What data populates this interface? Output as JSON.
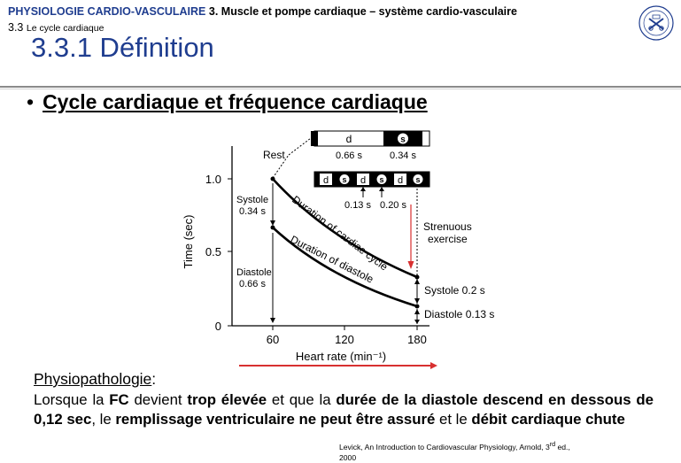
{
  "header": {
    "course": "PHYSIOLOGIE CARDIO-VASCULAIRE",
    "chapter": "3. Muscle et pompe cardiaque – système cardio-vasculaire",
    "section_number": "3.3",
    "section_name": "Le cycle cardiaque",
    "title": "3.3.1 Définition"
  },
  "bullet": {
    "symbol": "•",
    "text": "Cycle cardiaque et fréquence cardiaque"
  },
  "chart_data": {
    "type": "line",
    "xlabel": "Heart rate (min⁻¹)",
    "ylabel": "Time (sec)",
    "xlim": [
      60,
      180
    ],
    "ylim": [
      0,
      1.0
    ],
    "x_ticks": [
      "60",
      "120",
      "180"
    ],
    "y_ticks": [
      "0",
      "0.5",
      "1.0"
    ],
    "series": [
      {
        "name": "Duration of cardiac cycle",
        "x": [
          60,
          180
        ],
        "values": [
          1.0,
          0.33
        ]
      },
      {
        "name": "Duration of diastole",
        "x": [
          60,
          180
        ],
        "values": [
          0.66,
          0.13
        ]
      }
    ],
    "annotations": {
      "rest": "Rest",
      "systole_left": "Systole",
      "systole_left_value": "0.34 s",
      "diastole_left": "Diastole",
      "diastole_left_value": "0.66 s",
      "systole_right": "Systole 0.2 s",
      "diastole_right": "Diastole 0.13 s",
      "strenuous_1": "Strenuous",
      "strenuous_2": "exercise",
      "rest_bar_d": "d",
      "rest_bar_s": "s",
      "rest_d_duration": "0.66 s",
      "rest_s_duration": "0.34 s",
      "ex_bar_labels": [
        "d",
        "s",
        "d",
        "s",
        "d",
        "s"
      ],
      "ex_d_duration": "0.13 s",
      "ex_s_duration": "0.20 s"
    }
  },
  "physio": {
    "heading": "Physiopathologie",
    "colon": ":",
    "p1": "Lorsque la ",
    "b1": "FC",
    "p2": " devient ",
    "b2": "trop élevée",
    "p3": " et que la ",
    "b3": "durée de la diastole descend en dessous de 0,12 sec",
    "p4": ", le ",
    "b4": "remplissage ventriculaire ne peut être assuré",
    "p5": " et le ",
    "b5": "débit cardiaque chute"
  },
  "reference": {
    "line1": "Levick, An Introduction to Cardiovascular Physiology, Arnold, 3",
    "sup": "rd",
    "line1_end": " ed.,",
    "line2": "2000"
  },
  "colors": {
    "title_blue": "#1f3d8f",
    "arrow_red": "#d83030"
  }
}
